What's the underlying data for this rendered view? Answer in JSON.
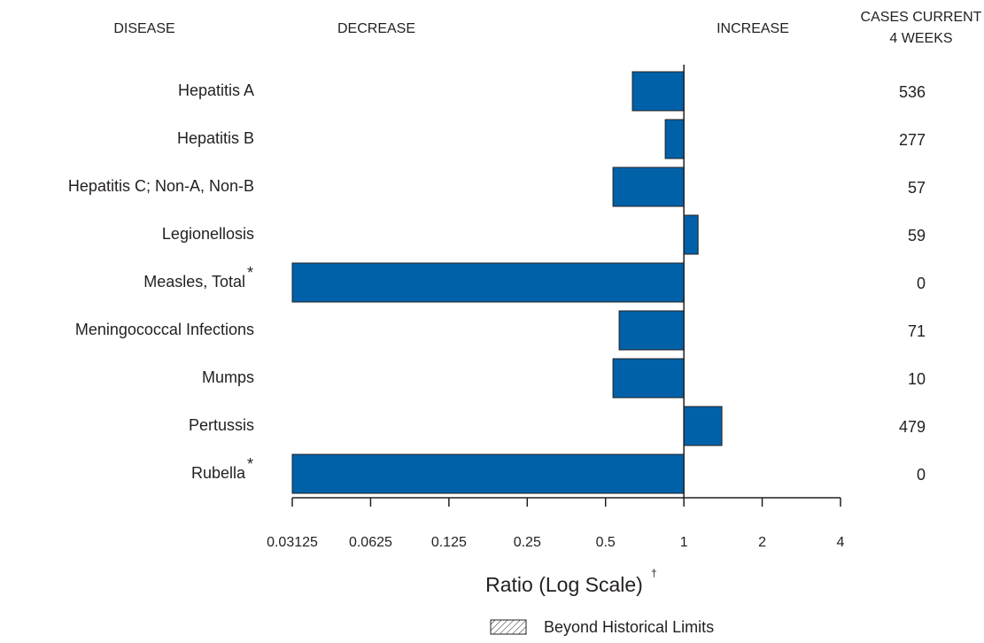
{
  "chart_data": {
    "type": "bar",
    "orientation": "horizontal",
    "log_scale": true,
    "headers": {
      "disease": "DISEASE",
      "decrease": "DECREASE",
      "increase": "INCREASE",
      "cases": [
        "CASES CURRENT",
        "4 WEEKS"
      ]
    },
    "categories": [
      "Hepatitis A",
      "Hepatitis B",
      "Hepatitis C; Non-A, Non-B",
      "Legionellosis",
      "Measles, Total",
      "Meningococcal Infections",
      "Mumps",
      "Pertussis",
      "Rubella"
    ],
    "category_notes": [
      null,
      null,
      null,
      null,
      "*",
      null,
      null,
      null,
      "*"
    ],
    "values": [
      0.634,
      0.848,
      0.534,
      1.134,
      0.03125,
      0.564,
      0.534,
      1.4,
      0.03125
    ],
    "cases": [
      536,
      277,
      57,
      59,
      0,
      71,
      10,
      479,
      0
    ],
    "color": "#0061a9",
    "reference_line": 1,
    "xlim": [
      0.03125,
      4
    ],
    "xticks": [
      0.03125,
      0.0625,
      0.125,
      0.25,
      0.5,
      1,
      2,
      4
    ],
    "x_label": "Ratio (Log Scale)",
    "x_label_note": "†",
    "legend": {
      "label": "Beyond Historical Limits",
      "pattern": "hatch"
    }
  }
}
